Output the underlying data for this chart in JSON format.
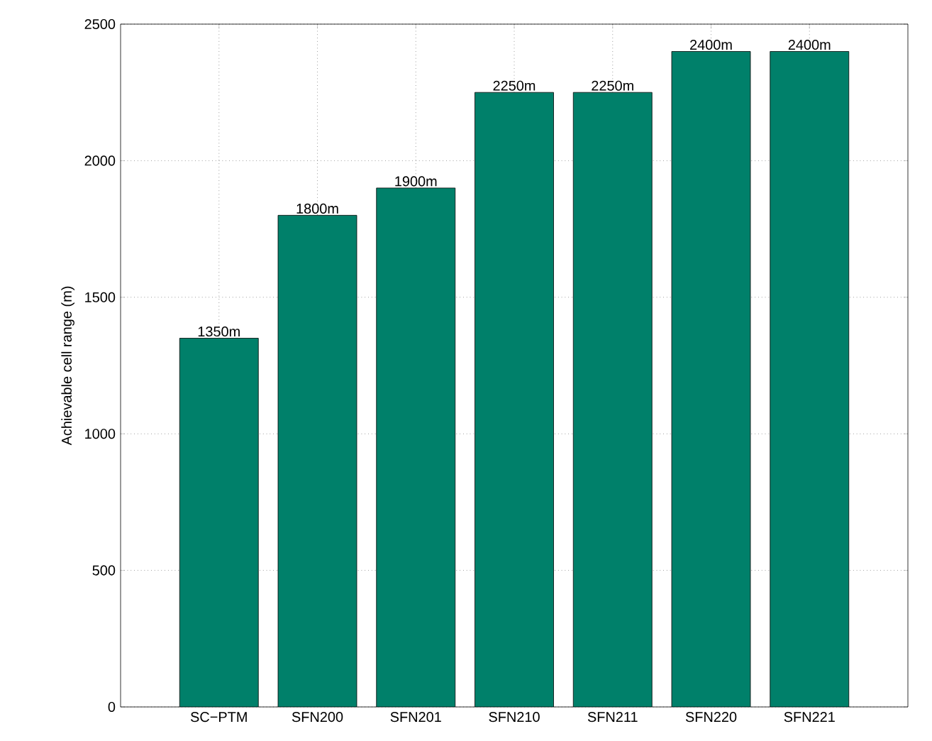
{
  "chart_data": {
    "type": "bar",
    "ylabel": "Achievable cell range (m)",
    "categories": [
      "SC−PTM",
      "SFN200",
      "SFN201",
      "SFN210",
      "SFN211",
      "SFN220",
      "SFN221"
    ],
    "values": [
      1350,
      1800,
      1900,
      2250,
      2250,
      2400,
      2400
    ],
    "value_labels": [
      "1350m",
      "1800m",
      "1900m",
      "2250m",
      "2250m",
      "2400m",
      "2400m"
    ],
    "color": "#00806a",
    "ylim": [
      0,
      2500
    ],
    "yticks": [
      0,
      500,
      1000,
      1500,
      2000,
      2500
    ],
    "grid": true
  }
}
